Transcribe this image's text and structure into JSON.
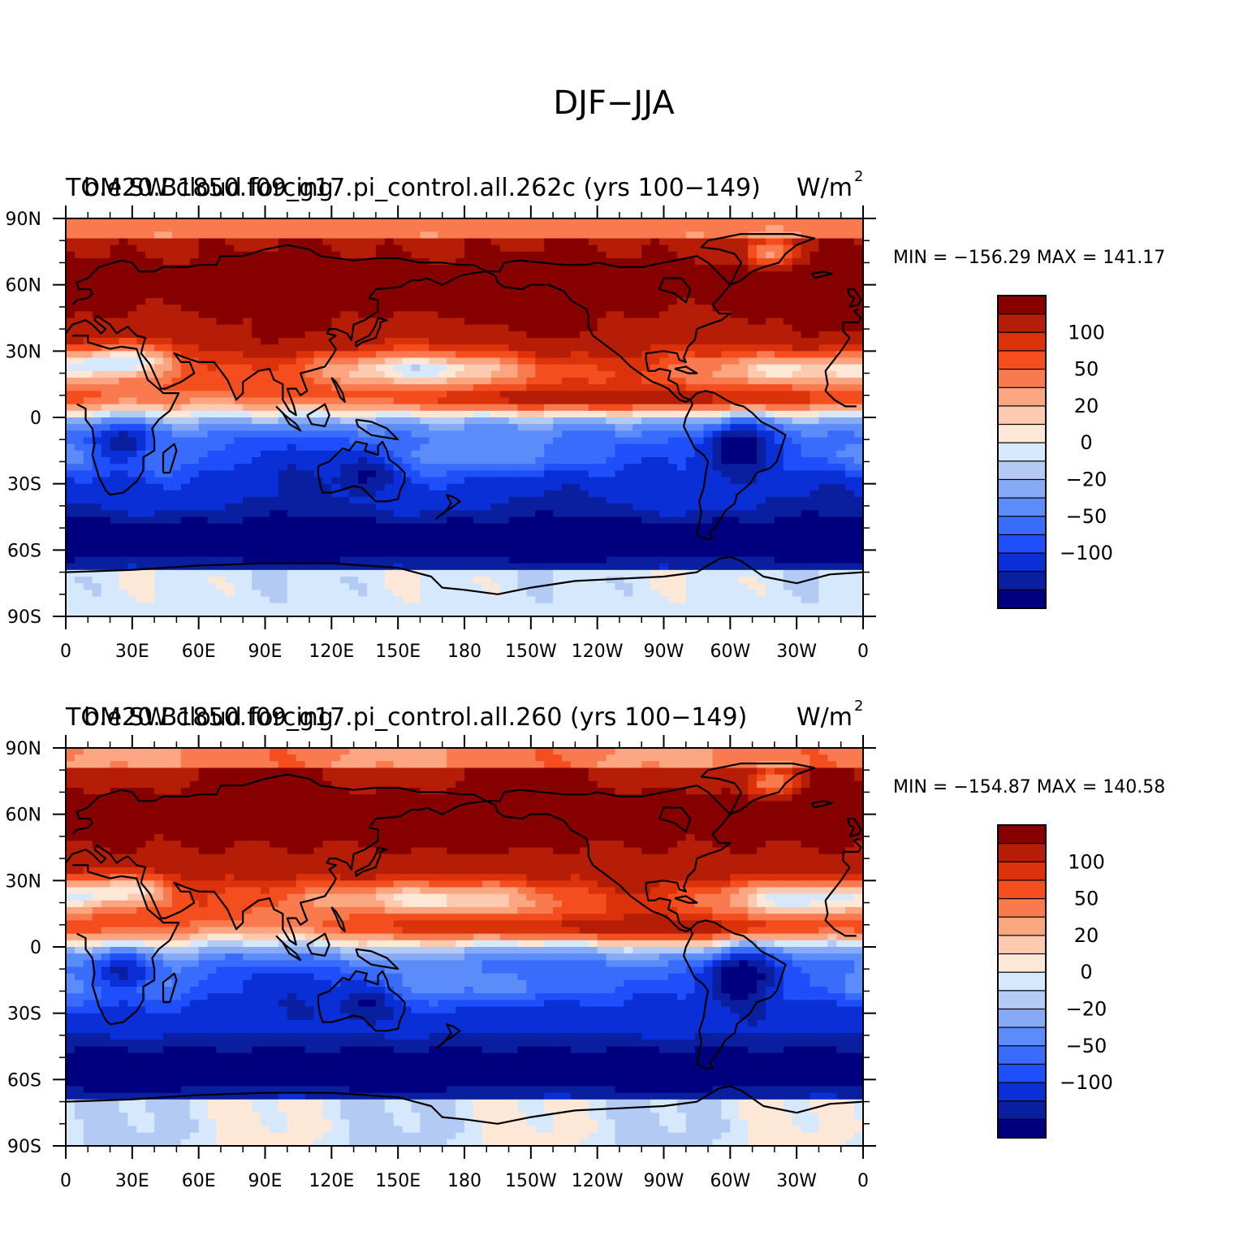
{
  "figure": {
    "title": "DJF−JJA"
  },
  "colors": {
    "levels": [
      -120,
      -100,
      -80,
      -65,
      -50,
      -35,
      -20,
      -10,
      0,
      10,
      20,
      35,
      50,
      65,
      80,
      100,
      120
    ],
    "palette": [
      "#00007f",
      "#0a1ea0",
      "#0b2fd6",
      "#1f4ffa",
      "#3a6cfc",
      "#5b8cfa",
      "#86aaf6",
      "#b3caf5",
      "#d6e8fb",
      "#fde8d8",
      "#fdcab0",
      "#fca681",
      "#f97a4e",
      "#f44e1e",
      "#dc320c",
      "#b51d06",
      "#860000"
    ],
    "coast": "#000000"
  },
  "panels": [
    {
      "id": "top",
      "title_left_a": "TOM SW cloud forcing",
      "title_left_b": "b.e20.B1850.f09_g17.pi_control.all.262c (yrs 100−149)",
      "units": "W/m",
      "units_sup": "2",
      "min_label": "MIN",
      "min_value": "−156.29",
      "max_label": "MAX",
      "max_value": "141.17",
      "variant": 0
    },
    {
      "id": "bottom",
      "title_left_a": "TOM SW cloud forcing",
      "title_left_b": "b.e20.B1850.f09_g17.pi_control.all.260 (yrs 100−149)",
      "units": "W/m",
      "units_sup": "2",
      "min_label": "MIN",
      "min_value": "−154.87",
      "max_label": "MAX",
      "max_value": "140.58",
      "variant": 1
    }
  ],
  "axes": {
    "lat_labels": [
      "90N",
      "60N",
      "30N",
      "0",
      "30S",
      "60S",
      "90S"
    ],
    "lon_labels": [
      "0",
      "30E",
      "60E",
      "90E",
      "120E",
      "150E",
      "180",
      "150W",
      "120W",
      "90W",
      "60W",
      "30W",
      "0"
    ]
  },
  "colorbar": {
    "labels": [
      "100",
      "50",
      "20",
      "0",
      "−20",
      "−50",
      "−100"
    ]
  }
}
